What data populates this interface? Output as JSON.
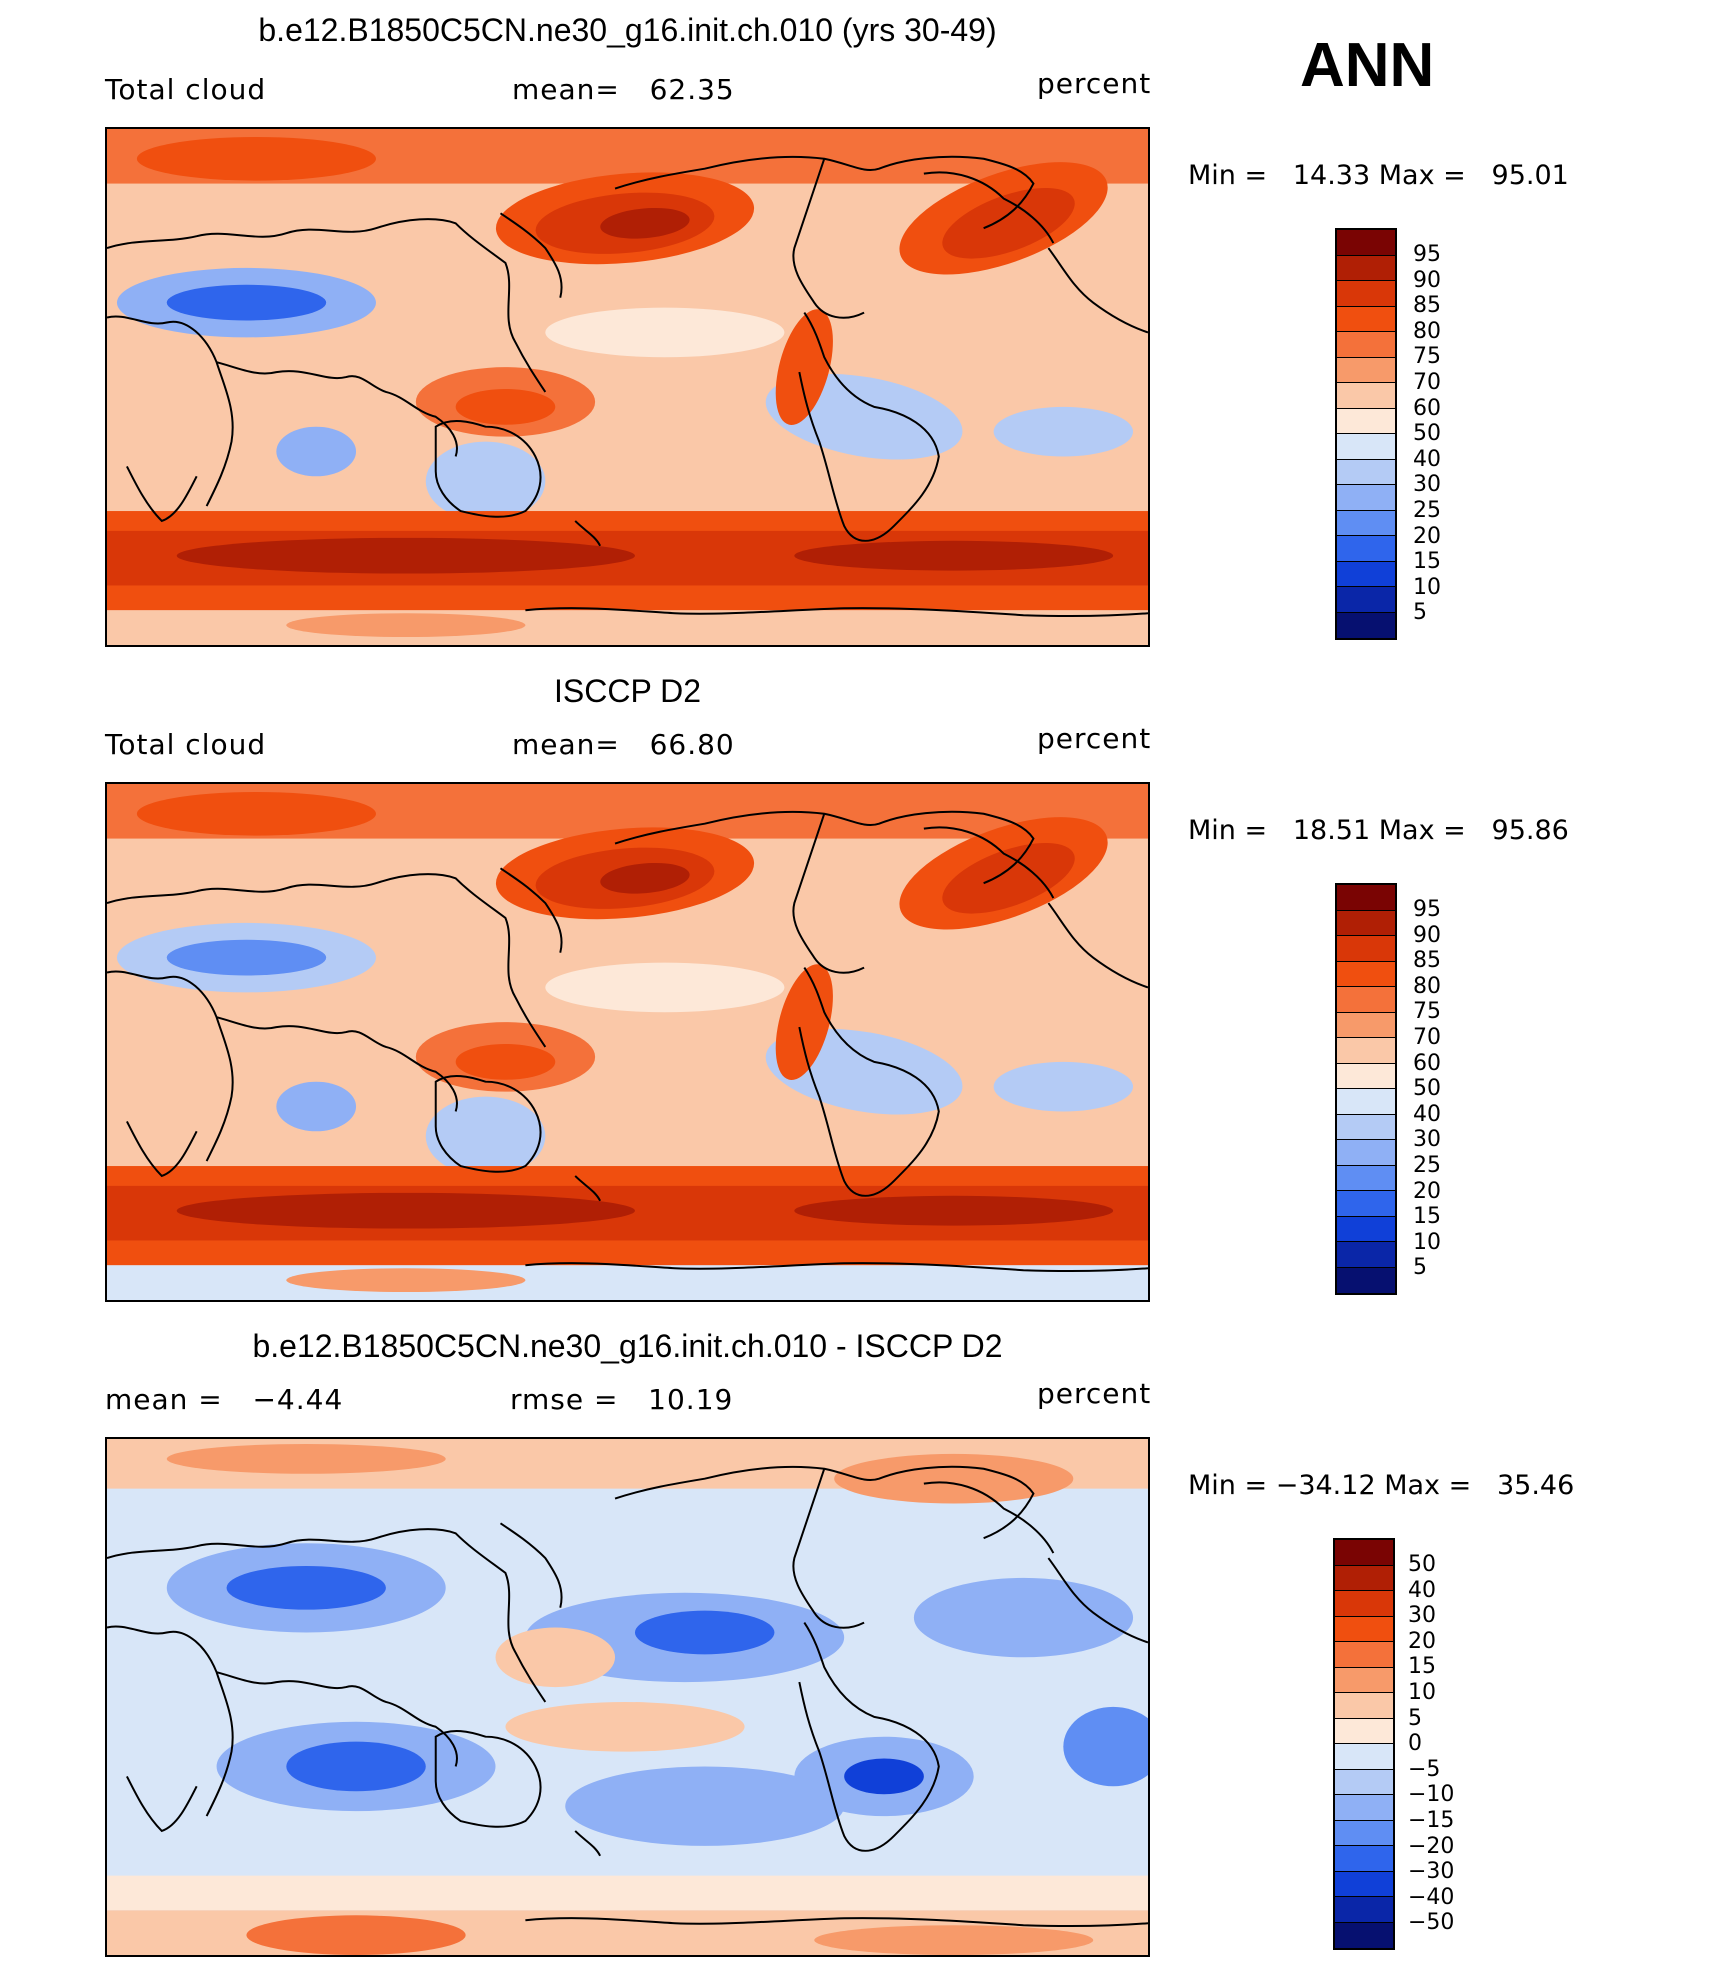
{
  "season": "ANN",
  "panels": [
    {
      "title": "b.e12.B1850C5CN.ne30_g16.init.ch.010 (yrs 30-49)",
      "left_label": "Total cloud",
      "center_label": "mean=   62.35",
      "right_label": "percent",
      "minmax": "Min =   14.33 Max =   95.01",
      "colorbar_labels": [
        "95",
        "90",
        "85",
        "80",
        "75",
        "70",
        "60",
        "50",
        "40",
        "30",
        "25",
        "20",
        "15",
        "10",
        "5"
      ],
      "pattern": "model"
    },
    {
      "title": "ISCCP D2",
      "left_label": "Total cloud",
      "center_label": "mean=   66.80",
      "right_label": "percent",
      "minmax": "Min =   18.51 Max =   95.86",
      "colorbar_labels": [
        "95",
        "90",
        "85",
        "80",
        "75",
        "70",
        "60",
        "50",
        "40",
        "30",
        "25",
        "20",
        "15",
        "10",
        "5"
      ],
      "pattern": "obs"
    },
    {
      "title": "b.e12.B1850C5CN.ne30_g16.init.ch.010 - ISCCP D2",
      "left_label": "mean =   −4.44",
      "center_label": "rmse =   10.19",
      "right_label": "percent",
      "minmax": "Min = −34.12 Max =   35.46",
      "colorbar_labels": [
        "50",
        "40",
        "30",
        "20",
        "15",
        "10",
        "5",
        "0",
        "−5",
        "−10",
        "−15",
        "−20",
        "−30",
        "−40",
        "−50"
      ],
      "pattern": "diff"
    }
  ],
  "palette": [
    "#7a0403",
    "#b01f05",
    "#d93708",
    "#f04f0f",
    "#f4713a",
    "#f79a6a",
    "#fac8a8",
    "#fde8d8",
    "#d8e6f8",
    "#b4cbf5",
    "#8fb0f5",
    "#5f8ef3",
    "#2f65ec",
    "#1040d8",
    "#0a26a8",
    "#061070"
  ]
}
